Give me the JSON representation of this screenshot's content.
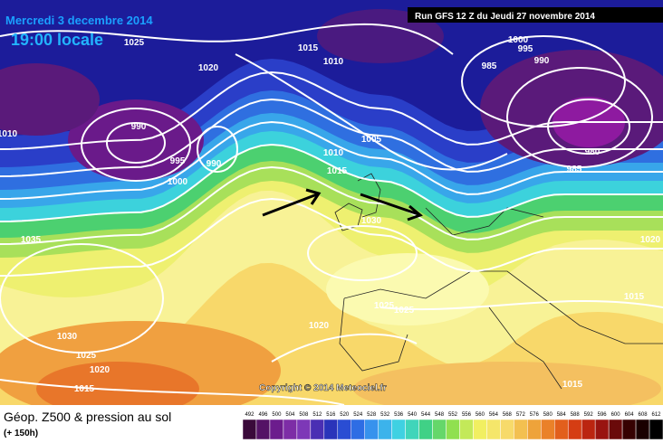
{
  "header": {
    "date": "Mercredi 3 decembre 2014",
    "time": "19:00 locale",
    "run": "Run GFS 12 Z du Jeudi 27 novembre 2014"
  },
  "isobar_labels": [
    "1025",
    "1020",
    "1015",
    "1010",
    "1000",
    "995",
    "990",
    "985",
    "990",
    "995",
    "990",
    "1000",
    "1010",
    "1005",
    "1010",
    "1015",
    "980",
    "985",
    "1030",
    "1035",
    "1025",
    "1025",
    "1020",
    "1030",
    "1025",
    "1020",
    "1015",
    "1015",
    "1015",
    "1020"
  ],
  "copyright": "Copyright © 2014 Meteociel.fr",
  "footer": {
    "title": "Géop. Z500 & pression au sol",
    "subtitle": "(+ 150h)"
  },
  "scale": [
    492,
    496,
    500,
    504,
    508,
    512,
    516,
    520,
    524,
    528,
    532,
    536,
    540,
    544,
    548,
    552,
    556,
    560,
    564,
    568,
    572,
    576,
    580,
    584,
    588,
    592,
    596,
    600,
    604,
    608,
    612
  ]
}
